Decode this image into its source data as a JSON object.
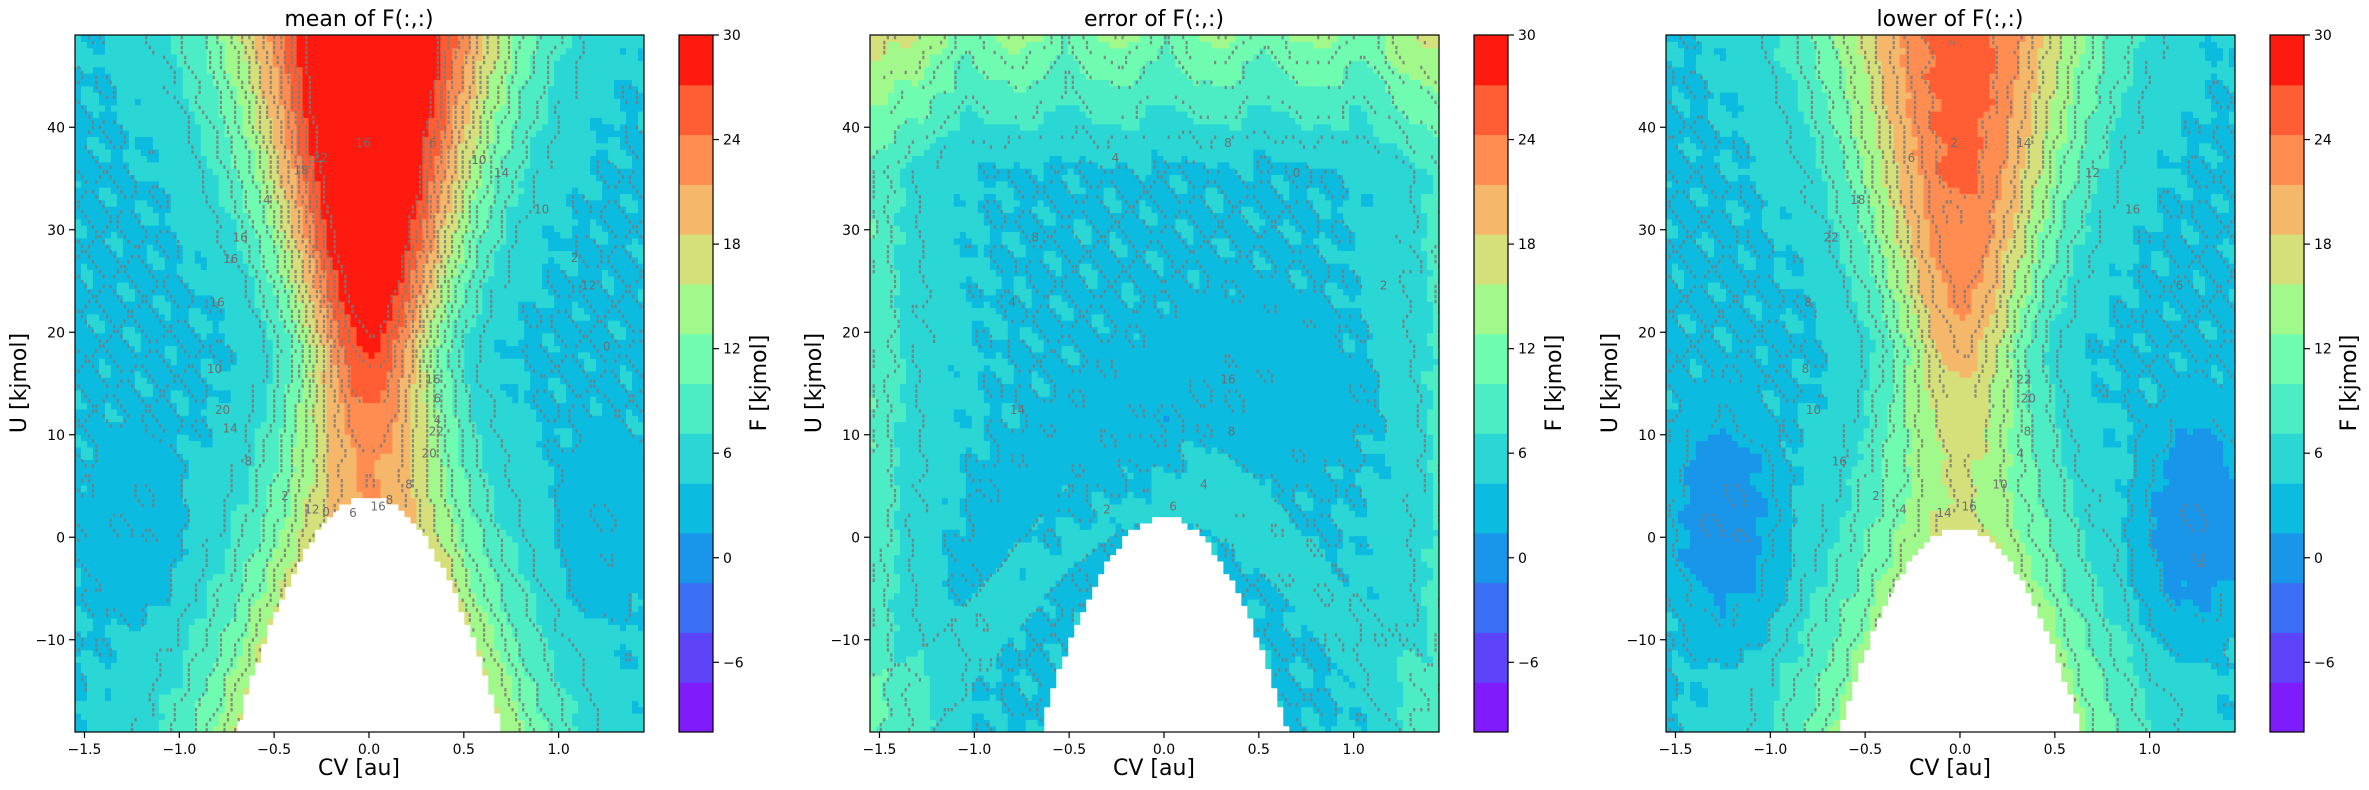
{
  "figure": {
    "panels": [
      {
        "id": "mean",
        "title": "mean of F(:,:)",
        "xlabel": "CV [au]",
        "ylabel": "U [kjmol]",
        "colorbar_label": "F [kjmol]",
        "contour_labels": [
          "16",
          "16",
          "16",
          "14",
          "20",
          "22",
          "22",
          "12",
          "12",
          "16",
          "8",
          "6",
          "8",
          "6",
          "4",
          "6",
          "10",
          "10",
          "20",
          "16",
          "2",
          "0",
          "16",
          "8",
          "10",
          "14",
          "4",
          "18",
          "0",
          "2"
        ]
      },
      {
        "id": "error",
        "title": "error of F(:,:)",
        "xlabel": "CV [au]",
        "ylabel": "U [kjmol]",
        "colorbar_label": "F [kjmol]",
        "contour_labels": [
          "16",
          "8",
          "6",
          "0",
          "14",
          "8",
          "4",
          "2",
          "2",
          "4",
          "4",
          "8"
        ]
      },
      {
        "id": "lower",
        "title": "lower of F(:,:)",
        "xlabel": "CV [au]",
        "ylabel": "U [kjmol]",
        "colorbar_label": "F [kjmol]",
        "contour_labels": [
          "22",
          "22",
          "16",
          "12",
          "10",
          "8",
          "6",
          "4",
          "6",
          "8",
          "10",
          "14",
          "16",
          "20",
          "18",
          "14",
          "16",
          "8",
          "4",
          "2",
          "2"
        ]
      }
    ]
  },
  "chart_data": [
    {
      "type": "heatmap",
      "title": "mean of F(:,:)",
      "xlabel": "CV [au]",
      "ylabel": "U [kjmol]",
      "xlim": [
        -1.55,
        1.45
      ],
      "ylim": [
        -19,
        49
      ],
      "xticks": [
        -1.5,
        -1.0,
        -0.5,
        0.0,
        0.5,
        1.0
      ],
      "xtick_labels": [
        "−1.5",
        "−1.0",
        "−0.5",
        "0.0",
        "0.5",
        "1.0"
      ],
      "yticks": [
        -10,
        0,
        10,
        20,
        30,
        40
      ],
      "ytick_labels": [
        "−10",
        "0",
        "10",
        "20",
        "30",
        "40"
      ],
      "colorbar": {
        "label": "F [kjmol]",
        "range": [
          -10,
          30
        ],
        "ticks": [
          -6,
          0,
          6,
          12,
          18,
          24,
          30
        ],
        "tick_labels": [
          "−6",
          "0",
          "6",
          "12",
          "18",
          "24",
          "30"
        ]
      },
      "model": {
        "well_depth": 2,
        "barrier_height": 32,
        "well_x": 1.25,
        "well_y": 2,
        "blank_region": {
          "peak_u": 4,
          "half_width": 0.72
        }
      }
    },
    {
      "type": "heatmap",
      "title": "error of F(:,:)",
      "xlabel": "CV [au]",
      "ylabel": "U [kjmol]",
      "xlim": [
        -1.55,
        1.45
      ],
      "ylim": [
        -19,
        49
      ],
      "xticks": [
        -1.5,
        -1.0,
        -0.5,
        0.0,
        0.5,
        1.0
      ],
      "xtick_labels": [
        "−1.5",
        "−1.0",
        "−0.5",
        "0.0",
        "0.5",
        "1.0"
      ],
      "yticks": [
        -10,
        0,
        10,
        20,
        30,
        40
      ],
      "ytick_labels": [
        "−10",
        "0",
        "10",
        "20",
        "30",
        "40"
      ],
      "colorbar": {
        "label": "F [kjmol]",
        "range": [
          -10,
          30
        ],
        "ticks": [
          -6,
          0,
          6,
          12,
          18,
          24,
          30
        ],
        "tick_labels": [
          "−6",
          "0",
          "6",
          "12",
          "18",
          "24",
          "30"
        ]
      },
      "model": {
        "base_error": 4,
        "low_band_error": 2,
        "edge_error": 16,
        "blank_region": {
          "peak_u": 2,
          "half_width": 0.7
        }
      }
    },
    {
      "type": "heatmap",
      "title": "lower of F(:,:)",
      "xlabel": "CV [au]",
      "ylabel": "U [kjmol]",
      "xlim": [
        -1.55,
        1.45
      ],
      "ylim": [
        -19,
        49
      ],
      "xticks": [
        -1.5,
        -1.0,
        -0.5,
        0.0,
        0.5,
        1.0
      ],
      "xtick_labels": [
        "−1.5",
        "−1.0",
        "−0.5",
        "0.0",
        "0.5",
        "1.0"
      ],
      "yticks": [
        -10,
        0,
        10,
        20,
        30,
        40
      ],
      "ytick_labels": [
        "−10",
        "0",
        "10",
        "20",
        "30",
        "40"
      ],
      "colorbar": {
        "label": "F [kjmol]",
        "range": [
          -10,
          30
        ],
        "ticks": [
          -6,
          0,
          6,
          12,
          18,
          24,
          30
        ],
        "tick_labels": [
          "−6",
          "0",
          "6",
          "12",
          "18",
          "24",
          "30"
        ]
      },
      "model": {
        "well_depth": 0,
        "barrier_height": 22,
        "well_x": 1.25,
        "well_y": 2,
        "blank_region": {
          "peak_u": 1,
          "half_width": 0.7
        }
      }
    }
  ],
  "colors": {
    "levels": [
      "#7f1cfb",
      "#5d44f9",
      "#3a6ef4",
      "#1996ea",
      "#0cbbe0",
      "#2ad7d5",
      "#4cedc4",
      "#6ffcb0",
      "#a1f98c",
      "#d6e07a",
      "#f5b86a",
      "#ff8d52",
      "#ff5d33",
      "#ff1a10"
    ],
    "contour_line": "#7a7a7a",
    "axes": "#000000"
  }
}
